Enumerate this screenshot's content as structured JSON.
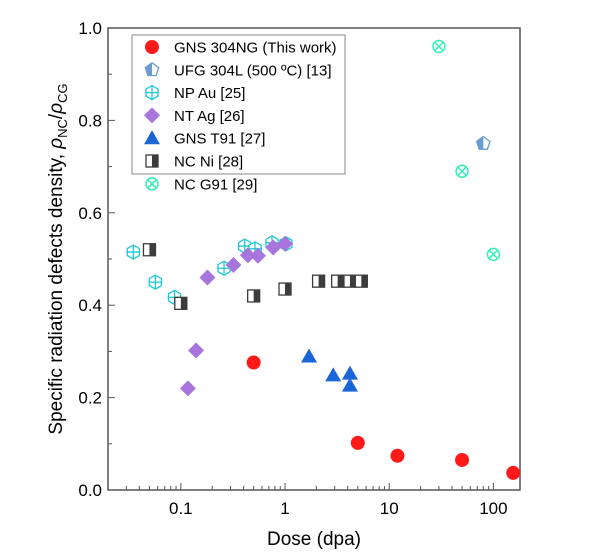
{
  "chart_data": {
    "type": "scatter",
    "xlabel": "Dose (dpa)",
    "ylabel": "Specific radiation defects density, ",
    "ylabel_symbol": {
      "num": "ρ",
      "num_sub": "NC",
      "sep": "/",
      "den": "ρ",
      "den_sub": "CG"
    },
    "xscale": "log",
    "xlim": [
      0.02,
      180
    ],
    "ylim": [
      0,
      1.0
    ],
    "xticks": [
      "0.1",
      "1",
      "10",
      "100"
    ],
    "xtick_values": [
      0.1,
      1,
      10,
      100
    ],
    "yticks": [
      "0.0",
      "0.2",
      "0.4",
      "0.6",
      "0.8",
      "1.0"
    ],
    "ytick_values": [
      0,
      0.2,
      0.4,
      0.6,
      0.8,
      1.0
    ],
    "grid": false,
    "legend_placement": "top-left",
    "series": [
      {
        "name": "GNS 304NG (This work)",
        "marker": "circle",
        "color": "#ff1a1a",
        "x": [
          0.5,
          5,
          12,
          50,
          155
        ],
        "y": [
          0.276,
          0.102,
          0.074,
          0.065,
          0.037
        ]
      },
      {
        "name": "UFG 304L (500 ºC) [13]",
        "marker": "half-pentagon",
        "color": "#6b9bd1",
        "x": [
          80
        ],
        "y": [
          0.75
        ]
      },
      {
        "name": "NP Au [25]",
        "marker": "hexagon-cross",
        "color": "#1ec8d8",
        "x": [
          0.035,
          0.057,
          0.087,
          0.26,
          0.41,
          0.515,
          0.75,
          1.02
        ],
        "y": [
          0.515,
          0.45,
          0.417,
          0.48,
          0.528,
          0.522,
          0.535,
          0.533
        ]
      },
      {
        "name": "NT Ag [26]",
        "marker": "diamond",
        "color": "#a775dc",
        "x": [
          0.117,
          0.14,
          0.18,
          0.32,
          0.44,
          0.55,
          0.77,
          1.0
        ],
        "y": [
          0.22,
          0.302,
          0.46,
          0.487,
          0.508,
          0.507,
          0.525,
          0.533
        ]
      },
      {
        "name": "GNS T91 [27]",
        "marker": "triangle",
        "color": "#1a66d6",
        "x": [
          1.7,
          2.9,
          4.2,
          4.2
        ],
        "y": [
          0.289,
          0.248,
          0.252,
          0.226
        ]
      },
      {
        "name": "NC Ni [28]",
        "marker": "half-square",
        "color": "#3c3c3c",
        "x": [
          0.05,
          0.1,
          0.5,
          1.0,
          2.1,
          3.2,
          4.2,
          5.4
        ],
        "y": [
          0.52,
          0.404,
          0.42,
          0.435,
          0.452,
          0.452,
          0.452,
          0.452
        ]
      },
      {
        "name": "NC G91 [29]",
        "marker": "circle-x",
        "color": "#33f0b8",
        "x": [
          30,
          50,
          100
        ],
        "y": [
          0.96,
          0.69,
          0.51
        ]
      }
    ]
  }
}
